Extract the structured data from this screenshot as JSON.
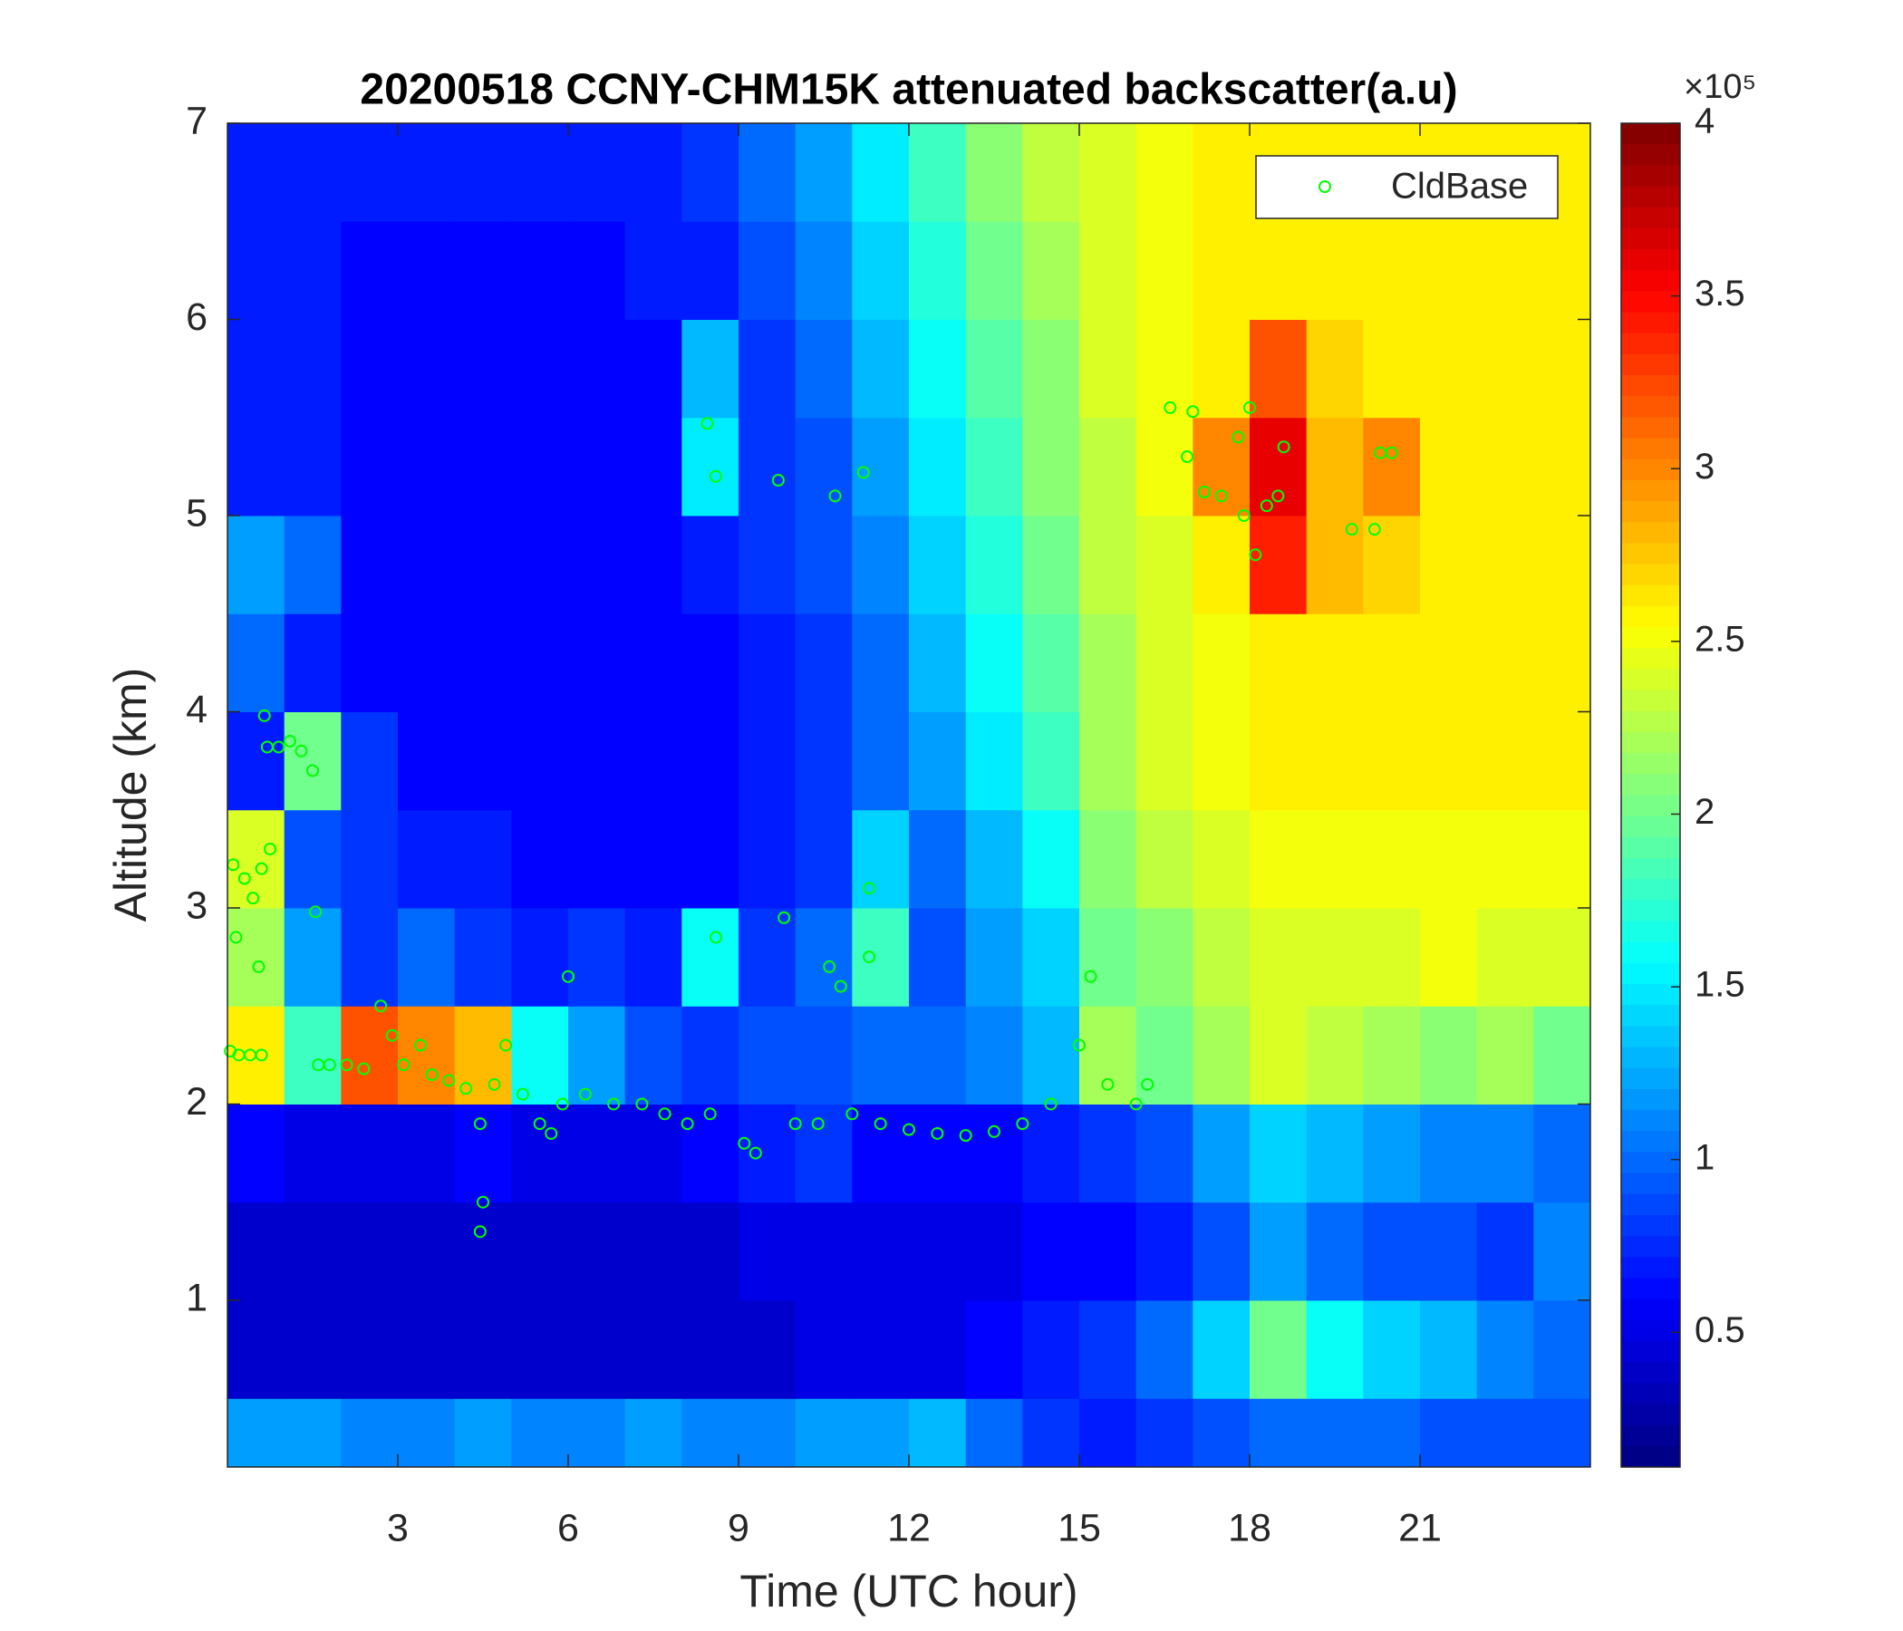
{
  "chart_data": {
    "type": "heatmap",
    "title": "20200518 CCNY-CHM15K attenuated backscatter(a.u)",
    "xlabel": "Time (UTC hour)",
    "ylabel": "Altitude (km)",
    "xlim": [
      0,
      24
    ],
    "ylim": [
      0.15,
      7
    ],
    "xticks": [
      3,
      6,
      9,
      12,
      15,
      18,
      21
    ],
    "yticks": [
      1,
      2,
      3,
      4,
      5,
      6,
      7
    ],
    "colormap": "jet",
    "clim": [
      0.11,
      4
    ],
    "colorbar_ticks": [
      0.5,
      1,
      1.5,
      2,
      2.5,
      3,
      3.5,
      4
    ],
    "colorbar_label": "×10⁵",
    "legend_position": "upper right",
    "xbins": [
      0,
      1,
      2,
      3,
      4,
      5,
      6,
      7,
      8,
      9,
      10,
      11,
      12,
      13,
      14,
      15,
      16,
      17,
      18,
      19,
      20,
      21,
      22,
      23,
      24
    ],
    "ybins": [
      0.15,
      0.5,
      1,
      1.5,
      2,
      2.5,
      3,
      3.5,
      4,
      4.5,
      5,
      5.5,
      6,
      6.5,
      7
    ],
    "z": [
      [
        1.2,
        1.2,
        1.1,
        1.1,
        1.2,
        1.1,
        1.1,
        1.2,
        1.1,
        1.1,
        1.2,
        1.2,
        1.3,
        1.0,
        0.8,
        0.7,
        0.8,
        0.9,
        1.0,
        1.0,
        1.0,
        0.9,
        0.9,
        0.9
      ],
      [
        0.4,
        0.4,
        0.4,
        0.4,
        0.4,
        0.4,
        0.4,
        0.4,
        0.4,
        0.4,
        0.5,
        0.5,
        0.5,
        0.6,
        0.7,
        0.8,
        1.0,
        1.4,
        2.0,
        1.6,
        1.4,
        1.3,
        1.1,
        1.0
      ],
      [
        0.4,
        0.4,
        0.4,
        0.4,
        0.4,
        0.4,
        0.4,
        0.4,
        0.4,
        0.5,
        0.5,
        0.5,
        0.5,
        0.5,
        0.6,
        0.6,
        0.7,
        0.9,
        1.2,
        1.0,
        0.9,
        0.9,
        0.8,
        1.1
      ],
      [
        0.6,
        0.5,
        0.5,
        0.5,
        0.6,
        0.5,
        0.5,
        0.5,
        0.6,
        0.7,
        0.8,
        0.6,
        0.6,
        0.6,
        0.7,
        0.8,
        0.9,
        1.2,
        1.4,
        1.3,
        1.2,
        1.1,
        1.1,
        1.0
      ],
      [
        2.6,
        1.8,
        3.2,
        3.0,
        2.8,
        1.6,
        1.2,
        0.9,
        0.8,
        0.9,
        0.9,
        1.0,
        1.0,
        1.1,
        1.3,
        2.2,
        2.0,
        2.2,
        2.4,
        2.3,
        2.2,
        2.1,
        2.2,
        2.0
      ],
      [
        2.2,
        1.2,
        0.8,
        1.0,
        0.8,
        0.7,
        0.8,
        0.7,
        1.6,
        0.8,
        1.0,
        1.8,
        0.9,
        1.2,
        1.4,
        2.0,
        2.1,
        2.3,
        2.4,
        2.4,
        2.4,
        2.5,
        2.4,
        2.4
      ],
      [
        2.4,
        0.9,
        0.8,
        0.7,
        0.7,
        0.6,
        0.6,
        0.6,
        0.6,
        0.7,
        0.8,
        1.4,
        1.0,
        1.3,
        1.6,
        2.1,
        2.3,
        2.4,
        2.5,
        2.5,
        2.5,
        2.5,
        2.5,
        2.5
      ],
      [
        0.7,
        2.0,
        0.8,
        0.6,
        0.6,
        0.6,
        0.6,
        0.6,
        0.6,
        0.7,
        0.8,
        1.0,
        1.2,
        1.5,
        1.8,
        2.2,
        2.4,
        2.5,
        2.6,
        2.6,
        2.6,
        2.6,
        2.6,
        2.6
      ],
      [
        1.0,
        0.7,
        0.6,
        0.6,
        0.6,
        0.6,
        0.6,
        0.6,
        0.6,
        0.7,
        0.8,
        1.0,
        1.3,
        1.6,
        1.9,
        2.2,
        2.4,
        2.5,
        2.6,
        2.6,
        2.6,
        2.6,
        2.6,
        2.6
      ],
      [
        1.2,
        1.0,
        0.6,
        0.6,
        0.6,
        0.6,
        0.6,
        0.6,
        0.7,
        0.8,
        0.9,
        1.1,
        1.4,
        1.7,
        2.0,
        2.3,
        2.4,
        2.6,
        3.4,
        2.8,
        2.7,
        2.6,
        2.6,
        2.6
      ],
      [
        0.7,
        0.7,
        0.6,
        0.6,
        0.6,
        0.6,
        0.6,
        0.6,
        1.5,
        0.8,
        0.9,
        1.2,
        1.5,
        1.8,
        2.1,
        2.3,
        2.5,
        3.0,
        3.6,
        2.8,
        3.0,
        2.6,
        2.6,
        2.6
      ],
      [
        0.7,
        0.7,
        0.6,
        0.6,
        0.6,
        0.6,
        0.6,
        0.6,
        1.3,
        0.8,
        1.0,
        1.3,
        1.6,
        1.9,
        2.1,
        2.4,
        2.5,
        2.6,
        3.2,
        2.7,
        2.6,
        2.6,
        2.6,
        2.6
      ],
      [
        0.7,
        0.7,
        0.6,
        0.6,
        0.6,
        0.6,
        0.6,
        0.7,
        0.7,
        0.9,
        1.1,
        1.4,
        1.7,
        2.0,
        2.2,
        2.4,
        2.5,
        2.6,
        2.6,
        2.6,
        2.6,
        2.6,
        2.6,
        2.6
      ],
      [
        0.7,
        0.7,
        0.7,
        0.7,
        0.7,
        0.7,
        0.7,
        0.7,
        0.8,
        1.0,
        1.2,
        1.5,
        1.8,
        2.1,
        2.3,
        2.4,
        2.5,
        2.6,
        2.6,
        2.6,
        2.6,
        2.6,
        2.6,
        2.6
      ]
    ],
    "scatter": {
      "name": "CldBase",
      "color": "#00ff00",
      "x": [
        0.05,
        0.2,
        0.4,
        0.6,
        0.15,
        0.1,
        0.3,
        0.45,
        0.6,
        0.75,
        0.55,
        0.65,
        0.7,
        0.9,
        1.1,
        1.3,
        1.5,
        1.55,
        1.6,
        1.8,
        2.1,
        2.4,
        2.7,
        2.9,
        3.1,
        3.4,
        3.6,
        3.9,
        4.2,
        4.45,
        4.5,
        4.45,
        4.7,
        4.9,
        5.2,
        5.5,
        5.7,
        5.9,
        6.0,
        6.3,
        6.8,
        7.3,
        7.7,
        8.1,
        8.5,
        8.6,
        8.45,
        8.6,
        9.1,
        9.3,
        9.7,
        9.8,
        10.0,
        10.4,
        10.7,
        10.6,
        10.8,
        11.0,
        11.2,
        11.3,
        11.3,
        11.5,
        12.0,
        12.5,
        13.0,
        13.5,
        14.0,
        14.5,
        15.0,
        15.2,
        15.5,
        16.0,
        16.2,
        16.6,
        17.0,
        16.9,
        17.2,
        17.5,
        17.8,
        18.0,
        17.9,
        18.1,
        18.3,
        18.5,
        18.6,
        19.8,
        20.2,
        20.3,
        20.5
      ],
      "y": [
        2.27,
        2.25,
        2.25,
        2.25,
        2.85,
        3.22,
        3.15,
        3.05,
        3.2,
        3.3,
        2.7,
        3.98,
        3.82,
        3.82,
        3.85,
        3.8,
        3.7,
        2.98,
        2.2,
        2.2,
        2.2,
        2.18,
        2.5,
        2.35,
        2.2,
        2.3,
        2.15,
        2.12,
        2.08,
        1.9,
        1.5,
        1.35,
        2.1,
        2.3,
        2.05,
        1.9,
        1.85,
        2.0,
        2.65,
        2.05,
        2.0,
        2.0,
        1.95,
        1.9,
        1.95,
        2.85,
        5.47,
        5.2,
        1.8,
        1.75,
        5.18,
        2.95,
        1.9,
        1.9,
        5.1,
        2.7,
        2.6,
        1.95,
        5.22,
        3.1,
        2.75,
        1.9,
        1.87,
        1.85,
        1.84,
        1.86,
        1.9,
        2.0,
        2.3,
        2.65,
        2.1,
        2.0,
        2.1,
        5.55,
        5.53,
        5.3,
        5.12,
        5.1,
        5.4,
        5.55,
        5.0,
        4.8,
        5.05,
        5.1,
        5.35,
        4.93,
        4.93,
        5.32,
        5.32
      ]
    }
  }
}
